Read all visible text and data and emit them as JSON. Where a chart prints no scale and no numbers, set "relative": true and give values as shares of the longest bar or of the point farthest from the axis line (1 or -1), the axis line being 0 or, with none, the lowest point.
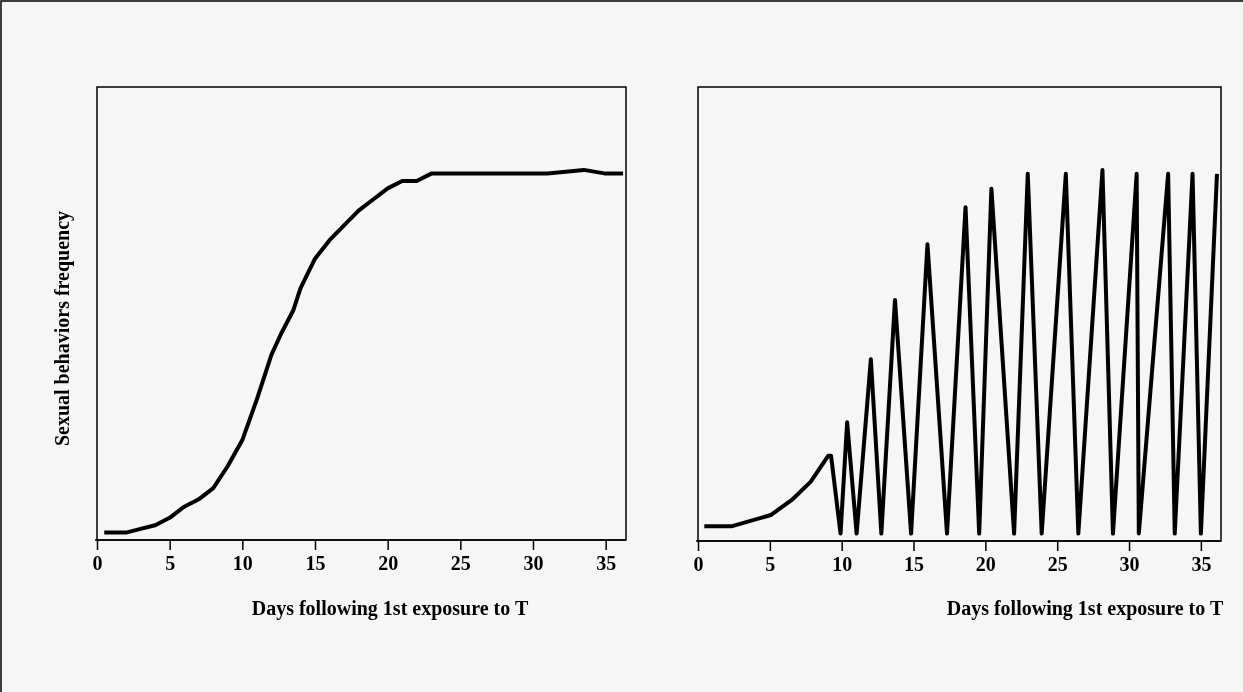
{
  "chart_data": [
    {
      "type": "line",
      "relative": true,
      "ylabel": "Sexual behaviors frequency",
      "xlabel": "Days following 1st exposure to T",
      "xlim": [
        0,
        36.4
      ],
      "xticks": [
        0,
        5,
        10,
        15,
        20,
        25,
        30,
        35
      ],
      "x": [
        0.5,
        2,
        3,
        4,
        5,
        6,
        7,
        8,
        9,
        10,
        11,
        12,
        12.7,
        13.5,
        14,
        15,
        16,
        17,
        18,
        19,
        20,
        21,
        22,
        23,
        24,
        31,
        33.5,
        35,
        36.2
      ],
      "series": [
        {
          "color": "#000000",
          "values": [
            0.02,
            0.02,
            0.03,
            0.04,
            0.06,
            0.09,
            0.11,
            0.14,
            0.2,
            0.27,
            0.38,
            0.5,
            0.56,
            0.62,
            0.68,
            0.76,
            0.81,
            0.85,
            0.89,
            0.92,
            0.95,
            0.97,
            0.97,
            0.99,
            0.99,
            0.99,
            1,
            0.99,
            0.99
          ]
        }
      ]
    },
    {
      "type": "line",
      "relative": true,
      "xlabel": "Days following 1st exposure to T",
      "xlim": [
        0,
        36.4
      ],
      "xticks": [
        0,
        5,
        10,
        15,
        20,
        25,
        30,
        35
      ],
      "x": [
        0.44,
        2.38,
        5.06,
        6.51,
        7.85,
        9.07,
        9.26,
        9.92,
        10.38,
        11.04,
        12.03,
        12.76,
        13.71,
        14.83,
        15.97,
        17.33,
        18.62,
        19.57,
        20.42,
        22.0,
        22.95,
        23.92,
        25.6,
        26.47,
        28.15,
        28.88,
        30.53,
        30.68,
        32.72,
        33.18,
        34.42,
        35.0,
        36.12
      ],
      "series": [
        {
          "color": "#000000",
          "values": [
            0.04,
            0.04,
            0.07,
            0.11,
            0.16,
            0.23,
            0.23,
            0.02,
            0.32,
            0.02,
            0.49,
            0.02,
            0.65,
            0.02,
            0.8,
            0.02,
            0.9,
            0.02,
            0.95,
            0.02,
            0.99,
            0.02,
            0.99,
            0.02,
            1,
            0.02,
            0.99,
            0.02,
            0.99,
            0.02,
            0.99,
            0.02,
            0.99
          ]
        }
      ]
    }
  ]
}
